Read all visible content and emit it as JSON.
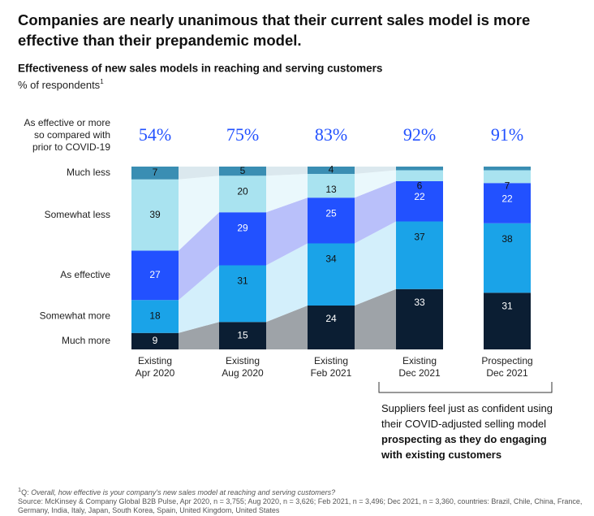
{
  "chart_data": {
    "type": "stacked_bar",
    "title": [
      "Companies are nearly unanimous that their current sales model is more",
      "effective than their prepandemic model."
    ],
    "subtitle": "Effectiveness of new sales models in reaching and serving customers",
    "unit_label": "% of respondents",
    "unit_note_marker": "1",
    "categories": [
      [
        "Existing",
        "Apr 2020"
      ],
      [
        "Existing",
        "Aug 2020"
      ],
      [
        "Existing",
        "Feb 2021"
      ],
      [
        "Existing",
        "Dec 2021"
      ],
      [
        "Prospecting",
        "Dec 2021"
      ]
    ],
    "ylim": [
      0,
      100
    ],
    "series": [
      {
        "name": "Much more",
        "color": "#0b1e33",
        "band_color": "#9ea3a8",
        "values": [
          9,
          15,
          24,
          33,
          31
        ]
      },
      {
        "name": "Somewhat more",
        "color": "#1aa3e8",
        "band_color": "#d3effb",
        "values": [
          18,
          31,
          34,
          37,
          38
        ]
      },
      {
        "name": "As effective",
        "color": "#2251ff",
        "band_color": "#b9c0fa",
        "values": [
          27,
          29,
          25,
          22,
          22
        ]
      },
      {
        "name": "Somewhat less",
        "color": "#a9e3f0",
        "band_color": "#eaf8fc",
        "values": [
          39,
          20,
          13,
          6,
          7
        ]
      },
      {
        "name": "Much less",
        "color": "#3a8eb3",
        "band_color": "#dbe8ee",
        "values": [
          7,
          5,
          4,
          2,
          2
        ]
      }
    ],
    "summary": {
      "label": [
        "As effective or more",
        "so compared with",
        "prior to COVID-19"
      ],
      "color": "#2251ff",
      "values": [
        54,
        75,
        83,
        92,
        91
      ],
      "value_labels": [
        "54%",
        "75%",
        "83%",
        "92%",
        "91%"
      ]
    },
    "annotation": {
      "text": "Suppliers feel just as confident using their COVID-adjusted selling model",
      "emphasis": "prospecting as they do engaging with existing customers"
    },
    "footnote": {
      "marker": "1",
      "prefix": "Q:",
      "question": "Overall, how effective is your company's new sales model at reaching and serving customers?",
      "source": "Source: McKinsey & Company Global B2B Pulse, Apr 2020, n = 3,755; Aug 2020, n = 3,626; Feb 2021, n = 3,496; Dec 2021, n = 3,360, countries: Brazil, Chile, China, France, Germany, India, Italy, Japan, South Korea, Spain, United Kingdom, United States"
    }
  }
}
